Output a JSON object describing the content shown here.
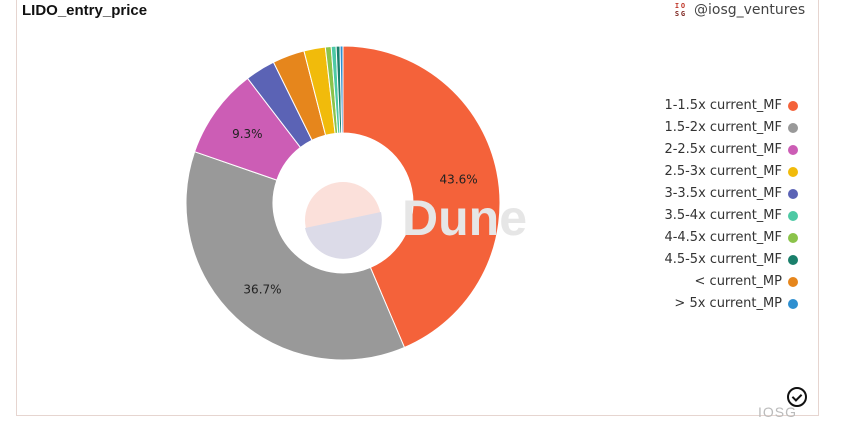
{
  "header": {
    "title": "LIDO_entry_price",
    "handle": "@iosg_ventures",
    "handle_logo_icon": "iosg-logo-icon"
  },
  "watermarks": {
    "center": "Dune",
    "corner": "IOSG"
  },
  "chart_data": {
    "type": "pie",
    "variant": "donut",
    "title": "LIDO_entry_price",
    "legend_position": "right",
    "series": [
      {
        "name": "1-1.5x current_MP",
        "value": 43.6,
        "color": "#f4623a",
        "label": "43.6%"
      },
      {
        "name": "1.5-2x current_MP",
        "value": 36.7,
        "color": "#999999",
        "label": "36.7%"
      },
      {
        "name": "2-2.5x current_MP",
        "value": 9.3,
        "color": "#cc5db5",
        "label": "9.3%"
      },
      {
        "name": "3-3.5x current_MP",
        "value": 3.1,
        "color": "#5b63b5",
        "label": ""
      },
      {
        "name": "< current_MP",
        "value": 3.3,
        "color": "#e6861c",
        "label": ""
      },
      {
        "name": "2.5-3x current_MP",
        "value": 2.2,
        "color": "#f1bb0b",
        "label": ""
      },
      {
        "name": "4-4.5x current_MP",
        "value": 0.6,
        "color": "#8bc34a",
        "label": ""
      },
      {
        "name": "3.5-4x current_MP",
        "value": 0.5,
        "color": "#4ec9a4",
        "label": ""
      },
      {
        "name": "4.5-5x current_MP",
        "value": 0.4,
        "color": "#1a7f6b",
        "label": ""
      },
      {
        "name": "> 5x current_MP",
        "value": 0.3,
        "color": "#2e8fd0",
        "label": ""
      }
    ],
    "legend": [
      {
        "label": "1-1.5x current_MF",
        "color": "#f4623a"
      },
      {
        "label": "1.5-2x current_MF",
        "color": "#999999"
      },
      {
        "label": "2-2.5x current_MF",
        "color": "#cc5db5"
      },
      {
        "label": "2.5-3x current_MF",
        "color": "#f1bb0b"
      },
      {
        "label": "3-3.5x current_MF",
        "color": "#5b63b5"
      },
      {
        "label": "3.5-4x current_MF",
        "color": "#4ec9a4"
      },
      {
        "label": "4-4.5x current_MF",
        "color": "#8bc34a"
      },
      {
        "label": "4.5-5x current_MF",
        "color": "#1a7f6b"
      },
      {
        "label": "< current_MP",
        "color": "#e6861c"
      },
      {
        "label": "> 5x current_MP",
        "color": "#2e8fd0"
      }
    ]
  }
}
